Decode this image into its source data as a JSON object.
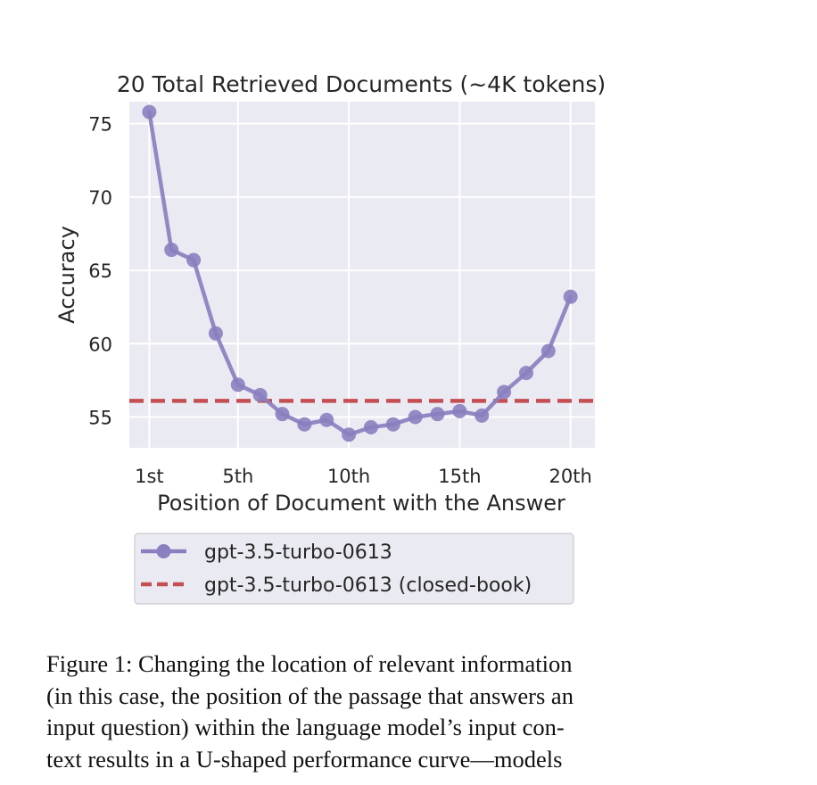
{
  "chart_data": {
    "type": "line",
    "title": "20 Total Retrieved Documents (~4K tokens)",
    "xlabel": "Position of Document with the Answer",
    "ylabel": "Accuracy",
    "x": [
      1,
      2,
      3,
      4,
      5,
      6,
      7,
      8,
      9,
      10,
      11,
      12,
      13,
      14,
      15,
      16,
      17,
      18,
      19,
      20
    ],
    "xlim": [
      0.1,
      21.1
    ],
    "ylim": [
      52.9,
      76.5
    ],
    "xticks": [
      1,
      5,
      10,
      15,
      20
    ],
    "xtick_labels": [
      "1st",
      "5th",
      "10th",
      "15th",
      "20th"
    ],
    "yticks": [
      55,
      60,
      65,
      70,
      75
    ],
    "ytick_labels": [
      "55",
      "60",
      "65",
      "70",
      "75"
    ],
    "grid": true,
    "series": [
      {
        "name": "gpt-3.5-turbo-0613",
        "style": "line-with-markers",
        "color": "#8b7fbf",
        "values": [
          75.8,
          66.4,
          65.7,
          60.7,
          57.2,
          56.5,
          55.2,
          54.5,
          54.8,
          53.8,
          54.3,
          54.5,
          55.0,
          55.2,
          55.4,
          55.1,
          56.7,
          58.0,
          59.5,
          63.2
        ]
      },
      {
        "name": "gpt-3.5-turbo-0613 (closed-book)",
        "style": "dashed-horizontal",
        "color": "#c44e52",
        "value": 56.1
      }
    ],
    "legend": {
      "placement": "below",
      "entries": [
        "gpt-3.5-turbo-0613",
        "gpt-3.5-turbo-0613 (closed-book)"
      ]
    },
    "background_color": "#eaeaf2",
    "grid_color": "#ffffff"
  },
  "caption": {
    "lines": [
      "Figure 1: Changing the location of relevant information",
      "(in this case, the position of the passage that answers an",
      "input question) within the language model’s input con-",
      "text results in a U-shaped performance curve—models"
    ]
  }
}
